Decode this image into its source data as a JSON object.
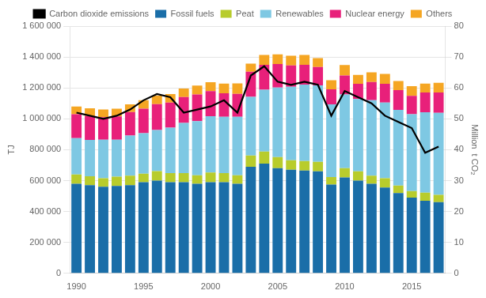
{
  "chart_data": {
    "type": "bar",
    "stacked": true,
    "categories": [
      "1990",
      null,
      null,
      null,
      null,
      "1995",
      null,
      null,
      null,
      null,
      "2000",
      null,
      null,
      null,
      null,
      "2005",
      null,
      null,
      null,
      null,
      "2010",
      null,
      null,
      null,
      null,
      "2015",
      null,
      null
    ],
    "series": [
      {
        "name": "Fossil fuels",
        "color": "#1a6ea8",
        "values": [
          580000,
          570000,
          560000,
          565000,
          570000,
          590000,
          600000,
          590000,
          590000,
          580000,
          590000,
          590000,
          580000,
          690000,
          710000,
          680000,
          670000,
          665000,
          660000,
          575000,
          620000,
          600000,
          580000,
          555000,
          520000,
          490000,
          470000,
          460000
        ]
      },
      {
        "name": "Peat",
        "color": "#b8cc2c",
        "values": [
          60000,
          58000,
          55000,
          60000,
          62000,
          55000,
          62000,
          58000,
          58000,
          55000,
          62000,
          58000,
          55000,
          72000,
          78000,
          72000,
          62000,
          62000,
          62000,
          48000,
          60000,
          60000,
          52000,
          60000,
          48000,
          42000,
          52000,
          48000
        ]
      },
      {
        "name": "Renewables",
        "color": "#7ec8e3",
        "values": [
          235000,
          235000,
          250000,
          240000,
          260000,
          262000,
          265000,
          295000,
          325000,
          350000,
          365000,
          365000,
          378000,
          380000,
          400000,
          450000,
          475000,
          495000,
          495000,
          470000,
          478000,
          468000,
          488000,
          490000,
          490000,
          498000,
          520000,
          530000
        ]
      },
      {
        "name": "Nuclear energy",
        "color": "#e8207a",
        "values": [
          155000,
          155000,
          145000,
          150000,
          152000,
          158000,
          168000,
          162000,
          168000,
          172000,
          162000,
          152000,
          148000,
          162000,
          162000,
          152000,
          138000,
          128000,
          118000,
          98000,
          122000,
          98000,
          118000,
          122000,
          128000,
          118000,
          128000,
          132000
        ]
      },
      {
        "name": "Others",
        "color": "#f5a623",
        "values": [
          50000,
          50000,
          50000,
          50000,
          50000,
          55000,
          55000,
          55000,
          55000,
          58000,
          58000,
          63000,
          68000,
          53000,
          63000,
          63000,
          63000,
          63000,
          58000,
          58000,
          68000,
          58000,
          63000,
          63000,
          58000,
          63000,
          58000,
          63000
        ]
      },
      {
        "name": "Carbon dioxide emissions",
        "type": "line",
        "axis": "y2",
        "color": "#000000",
        "values": [
          52,
          51,
          50,
          51,
          53,
          56,
          58,
          57,
          52,
          53,
          54,
          56,
          52,
          64,
          67,
          62,
          61,
          62,
          61,
          51,
          59,
          57,
          55,
          51,
          49,
          47,
          39,
          41
        ]
      }
    ],
    "ylabel": "TJ",
    "y2label": "Million  t CO₂",
    "ylim": [
      0,
      1600000
    ],
    "yticks": [
      0,
      {
        "value": 200000,
        "label": "200 000"
      },
      {
        "value": 400000,
        "label": "400 000"
      },
      {
        "value": 600000,
        "label": "600 000"
      },
      {
        "value": 800000,
        "label": "800 000"
      },
      {
        "value": 1000000,
        "label": "1 000 000"
      },
      {
        "value": 1200000,
        "label": "1 200 000"
      },
      {
        "value": 1400000,
        "label": "1 400 000"
      },
      {
        "value": 1600000,
        "label": "1 600 000"
      }
    ],
    "y2lim": [
      0,
      80
    ],
    "y2ticks": [
      0,
      10,
      20,
      30,
      40,
      50,
      60,
      70,
      80
    ],
    "grid": true,
    "legend": "top"
  }
}
